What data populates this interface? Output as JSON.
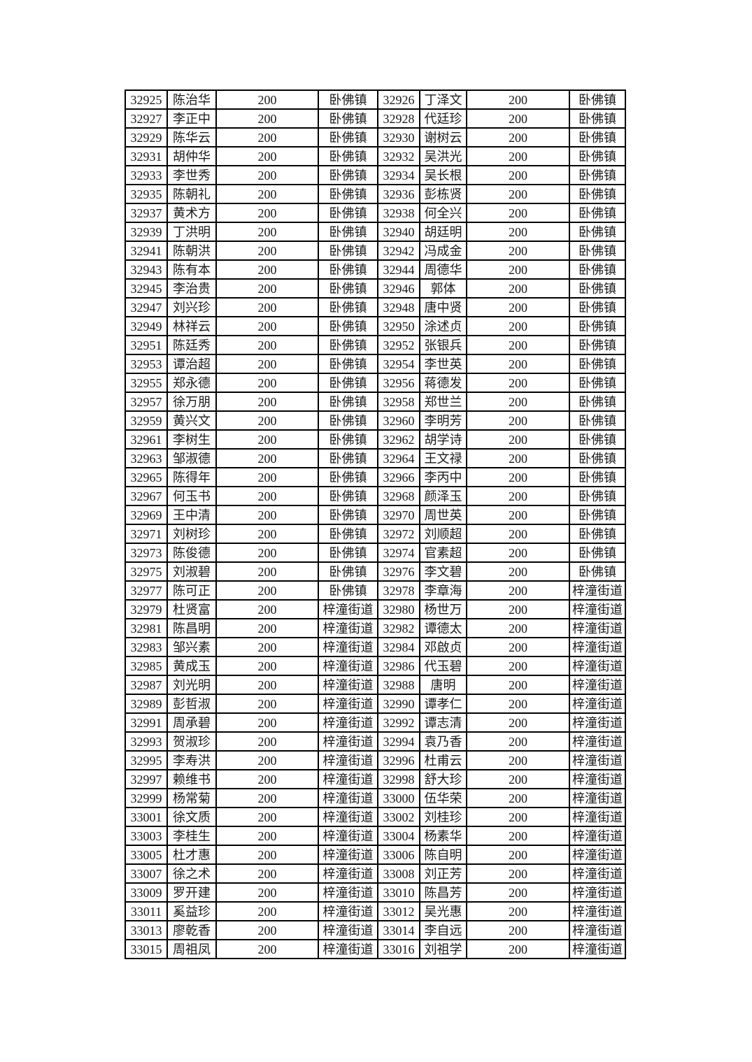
{
  "page": {
    "background_color": "#ffffff",
    "text_color": "#1a1a1a",
    "border_color": "#000000"
  },
  "table": {
    "column_keys": [
      "id",
      "name",
      "amount",
      "town"
    ],
    "rows": [
      [
        "32925",
        "陈治华",
        "200",
        "卧佛镇",
        "32926",
        "丁泽文",
        "200",
        "卧佛镇"
      ],
      [
        "32927",
        "李正中",
        "200",
        "卧佛镇",
        "32928",
        "代廷珍",
        "200",
        "卧佛镇"
      ],
      [
        "32929",
        "陈华云",
        "200",
        "卧佛镇",
        "32930",
        "谢树云",
        "200",
        "卧佛镇"
      ],
      [
        "32931",
        "胡仲华",
        "200",
        "卧佛镇",
        "32932",
        "吴洪光",
        "200",
        "卧佛镇"
      ],
      [
        "32933",
        "李世秀",
        "200",
        "卧佛镇",
        "32934",
        "吴长根",
        "200",
        "卧佛镇"
      ],
      [
        "32935",
        "陈朝礼",
        "200",
        "卧佛镇",
        "32936",
        "彭栋贤",
        "200",
        "卧佛镇"
      ],
      [
        "32937",
        "黄术方",
        "200",
        "卧佛镇",
        "32938",
        "何全兴",
        "200",
        "卧佛镇"
      ],
      [
        "32939",
        "丁洪明",
        "200",
        "卧佛镇",
        "32940",
        "胡廷明",
        "200",
        "卧佛镇"
      ],
      [
        "32941",
        "陈朝洪",
        "200",
        "卧佛镇",
        "32942",
        "冯成金",
        "200",
        "卧佛镇"
      ],
      [
        "32943",
        "陈有本",
        "200",
        "卧佛镇",
        "32944",
        "周德华",
        "200",
        "卧佛镇"
      ],
      [
        "32945",
        "李治贵",
        "200",
        "卧佛镇",
        "32946",
        "郭体",
        "200",
        "卧佛镇"
      ],
      [
        "32947",
        "刘兴珍",
        "200",
        "卧佛镇",
        "32948",
        "唐中贤",
        "200",
        "卧佛镇"
      ],
      [
        "32949",
        "林祥云",
        "200",
        "卧佛镇",
        "32950",
        "涂述贞",
        "200",
        "卧佛镇"
      ],
      [
        "32951",
        "陈廷秀",
        "200",
        "卧佛镇",
        "32952",
        "张银兵",
        "200",
        "卧佛镇"
      ],
      [
        "32953",
        "谭治超",
        "200",
        "卧佛镇",
        "32954",
        "李世英",
        "200",
        "卧佛镇"
      ],
      [
        "32955",
        "郑永德",
        "200",
        "卧佛镇",
        "32956",
        "蒋德发",
        "200",
        "卧佛镇"
      ],
      [
        "32957",
        "徐万朋",
        "200",
        "卧佛镇",
        "32958",
        "郑世兰",
        "200",
        "卧佛镇"
      ],
      [
        "32959",
        "黄兴文",
        "200",
        "卧佛镇",
        "32960",
        "李明芳",
        "200",
        "卧佛镇"
      ],
      [
        "32961",
        "李树生",
        "200",
        "卧佛镇",
        "32962",
        "胡学诗",
        "200",
        "卧佛镇"
      ],
      [
        "32963",
        "邹淑德",
        "200",
        "卧佛镇",
        "32964",
        "王文禄",
        "200",
        "卧佛镇"
      ],
      [
        "32965",
        "陈得年",
        "200",
        "卧佛镇",
        "32966",
        "李丙中",
        "200",
        "卧佛镇"
      ],
      [
        "32967",
        "何玉书",
        "200",
        "卧佛镇",
        "32968",
        "颜泽玉",
        "200",
        "卧佛镇"
      ],
      [
        "32969",
        "王中清",
        "200",
        "卧佛镇",
        "32970",
        "周世英",
        "200",
        "卧佛镇"
      ],
      [
        "32971",
        "刘树珍",
        "200",
        "卧佛镇",
        "32972",
        "刘顺超",
        "200",
        "卧佛镇"
      ],
      [
        "32973",
        "陈俊德",
        "200",
        "卧佛镇",
        "32974",
        "官素超",
        "200",
        "卧佛镇"
      ],
      [
        "32975",
        "刘淑碧",
        "200",
        "卧佛镇",
        "32976",
        "李文碧",
        "200",
        "卧佛镇"
      ],
      [
        "32977",
        "陈可正",
        "200",
        "卧佛镇",
        "32978",
        "李章海",
        "200",
        "梓潼街道"
      ],
      [
        "32979",
        "杜贤富",
        "200",
        "梓潼街道",
        "32980",
        "杨世万",
        "200",
        "梓潼街道"
      ],
      [
        "32981",
        "陈昌明",
        "200",
        "梓潼街道",
        "32982",
        "谭德太",
        "200",
        "梓潼街道"
      ],
      [
        "32983",
        "邹兴素",
        "200",
        "梓潼街道",
        "32984",
        "邓啟贞",
        "200",
        "梓潼街道"
      ],
      [
        "32985",
        "黄成玉",
        "200",
        "梓潼街道",
        "32986",
        "代玉碧",
        "200",
        "梓潼街道"
      ],
      [
        "32987",
        "刘光明",
        "200",
        "梓潼街道",
        "32988",
        "唐明",
        "200",
        "梓潼街道"
      ],
      [
        "32989",
        "彭哲淑",
        "200",
        "梓潼街道",
        "32990",
        "谭孝仁",
        "200",
        "梓潼街道"
      ],
      [
        "32991",
        "周承碧",
        "200",
        "梓潼街道",
        "32992",
        "谭志清",
        "200",
        "梓潼街道"
      ],
      [
        "32993",
        "贺淑珍",
        "200",
        "梓潼街道",
        "32994",
        "袁乃香",
        "200",
        "梓潼街道"
      ],
      [
        "32995",
        "李寿洪",
        "200",
        "梓潼街道",
        "32996",
        "杜甫云",
        "200",
        "梓潼街道"
      ],
      [
        "32997",
        "赖维书",
        "200",
        "梓潼街道",
        "32998",
        "舒大珍",
        "200",
        "梓潼街道"
      ],
      [
        "32999",
        "杨常菊",
        "200",
        "梓潼街道",
        "33000",
        "伍华荣",
        "200",
        "梓潼街道"
      ],
      [
        "33001",
        "徐文质",
        "200",
        "梓潼街道",
        "33002",
        "刘桂珍",
        "200",
        "梓潼街道"
      ],
      [
        "33003",
        "李桂生",
        "200",
        "梓潼街道",
        "33004",
        "杨素华",
        "200",
        "梓潼街道"
      ],
      [
        "33005",
        "杜才惠",
        "200",
        "梓潼街道",
        "33006",
        "陈自明",
        "200",
        "梓潼街道"
      ],
      [
        "33007",
        "徐之术",
        "200",
        "梓潼街道",
        "33008",
        "刘正芳",
        "200",
        "梓潼街道"
      ],
      [
        "33009",
        "罗开建",
        "200",
        "梓潼街道",
        "33010",
        "陈昌芳",
        "200",
        "梓潼街道"
      ],
      [
        "33011",
        "奚益珍",
        "200",
        "梓潼街道",
        "33012",
        "吴光惠",
        "200",
        "梓潼街道"
      ],
      [
        "33013",
        "廖乾香",
        "200",
        "梓潼街道",
        "33014",
        "李自远",
        "200",
        "梓潼街道"
      ],
      [
        "33015",
        "周祖凤",
        "200",
        "梓潼街道",
        "33016",
        "刘祖学",
        "200",
        "梓潼街道"
      ]
    ]
  }
}
